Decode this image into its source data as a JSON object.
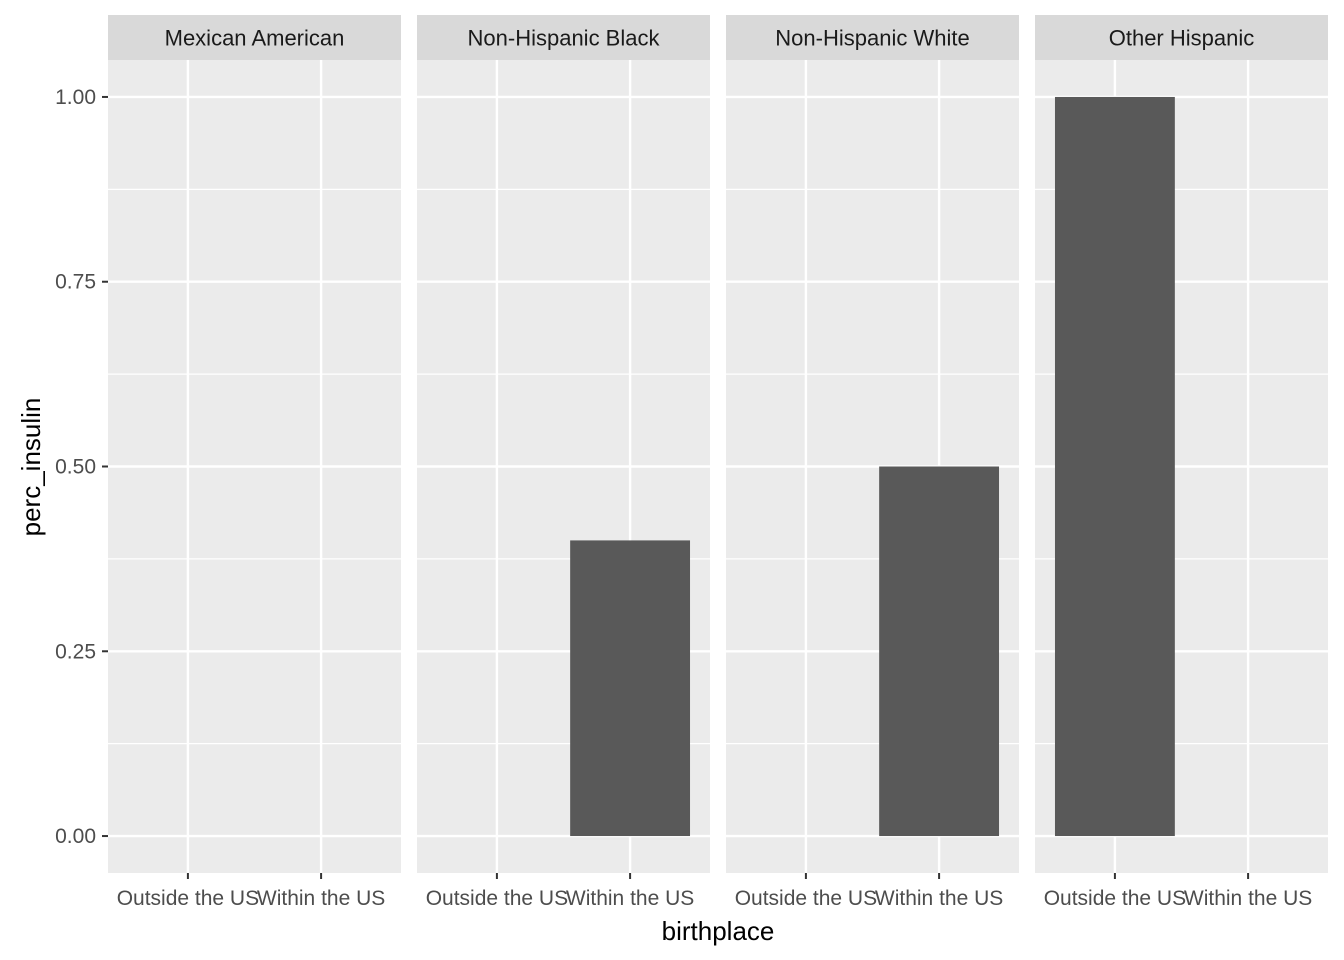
{
  "chart_data": {
    "type": "bar",
    "facet_variable": "race",
    "xlabel": "birthplace",
    "ylabel": "perc_insulin",
    "ylim": [
      -0.05,
      1.05
    ],
    "yticks": [
      {
        "value": 0.0,
        "label": "0.00"
      },
      {
        "value": 0.25,
        "label": "0.25"
      },
      {
        "value": 0.5,
        "label": "0.50"
      },
      {
        "value": 0.75,
        "label": "0.75"
      },
      {
        "value": 1.0,
        "label": "1.00"
      }
    ],
    "categories": [
      "Outside the US",
      "Within the US"
    ],
    "grid": true,
    "panel_background": "#ebebeb",
    "strip_background": "#d9d9d9",
    "bar_color": "#595959",
    "facets": [
      {
        "label": "Mexican American",
        "values": [
          0.0,
          0.0
        ]
      },
      {
        "label": "Non-Hispanic Black",
        "values": [
          0.0,
          0.4
        ]
      },
      {
        "label": "Non-Hispanic White",
        "values": [
          0.0,
          0.5
        ]
      },
      {
        "label": "Other Hispanic",
        "values": [
          1.0,
          0.0
        ]
      }
    ]
  }
}
